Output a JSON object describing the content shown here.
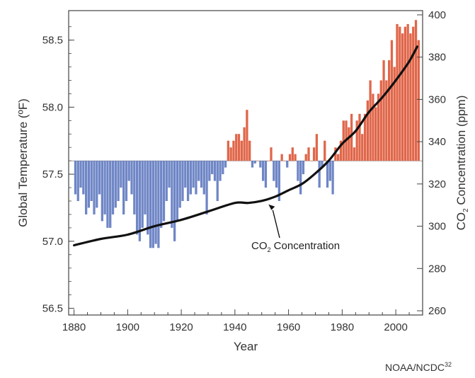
{
  "chart_data": {
    "type": "bar",
    "xlabel": "Year",
    "ylabel_left": "Global Temperature (ºF)",
    "ylabel_right_main": "CO",
    "ylabel_right_sub": "2",
    "ylabel_right_tail": " Concentration (ppm)",
    "credit": "NOAA/NCDC",
    "credit_sup": "32",
    "annotation": {
      "main": "CO",
      "sub": "2",
      "tail": " Concentration",
      "arrow_year": 1952,
      "arrow_ppm": 313
    },
    "x_ticks": [
      1880,
      1900,
      1920,
      1940,
      1960,
      1980,
      2000
    ],
    "xlim": [
      1878,
      2010
    ],
    "y_left_ticks": [
      "56.5",
      "57.0",
      "57.5",
      "58.0",
      "58.5"
    ],
    "y_left_lim": [
      56.45,
      58.72
    ],
    "y_right_ticks": [
      "260",
      "280",
      "300",
      "320",
      "340",
      "360",
      "380",
      "400"
    ],
    "y_right_lim": [
      258,
      402
    ],
    "baseline_temp": 57.6,
    "colors": {
      "warm": "#e0664a",
      "cool": "#6f86c6",
      "co2_line": "#111111",
      "axis": "#444444"
    },
    "temperature_series": {
      "name": "Global Temperature",
      "start_year": 1880,
      "values": [
        57.35,
        57.3,
        57.4,
        57.35,
        57.2,
        57.25,
        57.3,
        57.2,
        57.25,
        57.35,
        57.15,
        57.2,
        57.1,
        57.1,
        57.2,
        57.25,
        57.3,
        57.4,
        57.2,
        57.3,
        57.45,
        57.35,
        57.2,
        57.05,
        57.0,
        57.1,
        57.2,
        57.05,
        56.95,
        56.95,
        56.98,
        56.95,
        57.1,
        57.15,
        57.3,
        57.4,
        57.1,
        57.0,
        57.15,
        57.25,
        57.3,
        57.4,
        57.3,
        57.35,
        57.4,
        57.35,
        57.45,
        57.4,
        57.35,
        57.2,
        57.45,
        57.5,
        57.45,
        57.3,
        57.45,
        57.5,
        57.55,
        57.75,
        57.7,
        57.75,
        57.8,
        57.8,
        57.75,
        57.85,
        57.98,
        57.75,
        57.55,
        57.58,
        57.6,
        57.55,
        57.45,
        57.4,
        57.6,
        57.7,
        57.45,
        57.4,
        57.3,
        57.65,
        57.6,
        57.55,
        57.65,
        57.7,
        57.65,
        57.45,
        57.35,
        57.5,
        57.65,
        57.7,
        57.6,
        57.7,
        57.8,
        57.4,
        57.55,
        57.75,
        57.4,
        57.45,
        57.35,
        57.7,
        57.65,
        57.75,
        57.9,
        57.9,
        57.85,
        57.95,
        57.7,
        57.9,
        57.95,
        57.8,
        57.95,
        58.05,
        58.2,
        58.1,
        58.0,
        58.1,
        58.2,
        58.35,
        58.2,
        58.35,
        58.5,
        58.3,
        58.62,
        58.6,
        58.55,
        58.6,
        58.62,
        58.55,
        58.6,
        58.65,
        58.5
      ]
    },
    "co2_series": {
      "name": "CO2 Concentration",
      "points": [
        [
          1880,
          291
        ],
        [
          1890,
          294
        ],
        [
          1900,
          296
        ],
        [
          1910,
          300
        ],
        [
          1920,
          303
        ],
        [
          1930,
          307
        ],
        [
          1940,
          311
        ],
        [
          1945,
          311
        ],
        [
          1950,
          312
        ],
        [
          1955,
          314
        ],
        [
          1960,
          317
        ],
        [
          1965,
          320
        ],
        [
          1970,
          325
        ],
        [
          1975,
          331
        ],
        [
          1980,
          339
        ],
        [
          1985,
          345
        ],
        [
          1990,
          354
        ],
        [
          1995,
          361
        ],
        [
          2000,
          369
        ],
        [
          2005,
          378
        ],
        [
          2008,
          385
        ]
      ]
    }
  }
}
